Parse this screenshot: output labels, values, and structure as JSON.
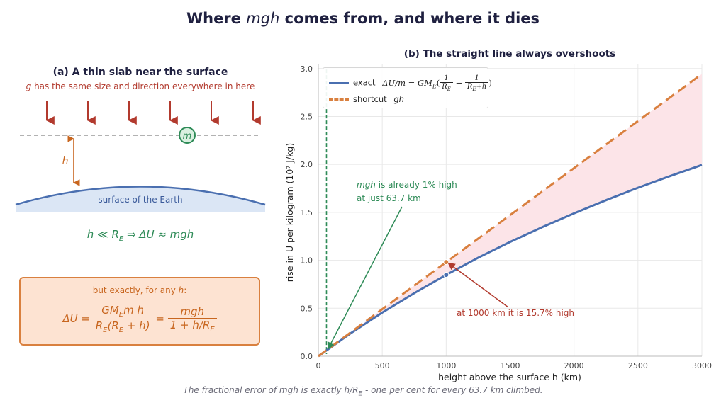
{
  "title": "Where mgh comes from, and where it dies",
  "title_parts": {
    "pre": "Where ",
    "math": "mgh",
    "post": " comes from, and where it dies"
  },
  "panel_a": {
    "title": "(a) A thin slab near the surface",
    "subtitle_math": "g",
    "subtitle": " has the same size and direction everywhere in here",
    "mass_label": "m",
    "height_label": "h",
    "surface_label": "surface of the Earth",
    "approx_condition": "h ≪ R",
    "approx_sub": "E",
    "approx_result": " ⇒ ΔU ≈ mgh",
    "exact_label_pre": "but exactly, for any ",
    "exact_label_math": "h",
    "exact_label_post": ":",
    "exact_lhs": "ΔU =",
    "exact_frac1_num": "GM",
    "exact_frac1_num_sub": "E",
    "exact_frac1_num_rest": "m h",
    "exact_frac1_den": "R",
    "exact_frac1_den_sub": "E",
    "exact_frac1_den_rest": "(R",
    "exact_frac1_den_sub2": "E",
    "exact_frac1_den_end": " + h)",
    "exact_eq": "=",
    "exact_frac2_num": "mgh",
    "exact_frac2_den": "1 + h/R",
    "exact_frac2_den_sub": "E",
    "colors": {
      "arrow": "#b23a2e",
      "mass": "#2e8b57",
      "height": "#c8661f",
      "earth_line": "#4a6fb0",
      "earth_fill": "#dbe6f5"
    }
  },
  "panel_b": {
    "title": "(b) The straight line always overshoots",
    "annotation_1_math": "mgh",
    "annotation_1_rest": " is already 1% high",
    "annotation_1_line2": "at just 63.7 km",
    "annotation_2": "at 1000 km it is 15.7% high",
    "legend": {
      "exact_label": "exact",
      "exact_formula": "ΔU/m = GM",
      "exact_formula_sub": "E",
      "shortcut_label": "shortcut",
      "shortcut_math": "gh"
    }
  },
  "footer": "The fractional error of mgh is exactly h/R",
  "footer_sub": "E",
  "footer_end": " - one per cent for every 63.7 km climbed.",
  "chart_data": {
    "type": "line",
    "title": "(b) The straight line always overshoots",
    "xlabel": "height above the surface  h   (km)",
    "ylabel": "rise in U per kilogram   (10⁷ J/kg)",
    "xlim": [
      0,
      3000
    ],
    "ylim": [
      0,
      3.05
    ],
    "x_ticks": [
      0,
      500,
      1000,
      1500,
      2000,
      2500,
      3000
    ],
    "y_ticks": [
      0.0,
      0.5,
      1.0,
      1.5,
      2.0,
      2.5,
      3.0
    ],
    "x_tick_labels": [
      "0",
      "500",
      "1000",
      "1500",
      "2000",
      "2500",
      "3000"
    ],
    "y_tick_labels": [
      "0.0",
      "0.5",
      "1.0",
      "1.5",
      "2.0",
      "2.5",
      "3.0"
    ],
    "grid": true,
    "legend_position": "top-left",
    "series": [
      {
        "name": "exact",
        "style": "solid",
        "color": "#4a6fb0",
        "x": [
          0,
          250,
          500,
          750,
          1000,
          1250,
          1500,
          1750,
          2000,
          2250,
          2500,
          2750,
          3000
        ],
        "y": [
          0,
          0.236,
          0.455,
          0.657,
          0.848,
          1.027,
          1.192,
          1.345,
          1.49,
          1.627,
          1.757,
          1.878,
          1.995
        ]
      },
      {
        "name": "shortcut",
        "style": "dashed",
        "color": "#d9803f",
        "x": [
          0,
          3000
        ],
        "y": [
          0,
          2.943
        ]
      }
    ],
    "vertical_marker": {
      "x": 63.7,
      "color": "#2e8b57",
      "style": "dashed"
    },
    "points": [
      {
        "x": 1000,
        "y": 0.848,
        "color": "#4a6fb0"
      },
      {
        "x": 1000,
        "y": 0.981,
        "color": "#d9803f"
      }
    ],
    "shaded_between": {
      "color": "#fce4e8"
    }
  }
}
